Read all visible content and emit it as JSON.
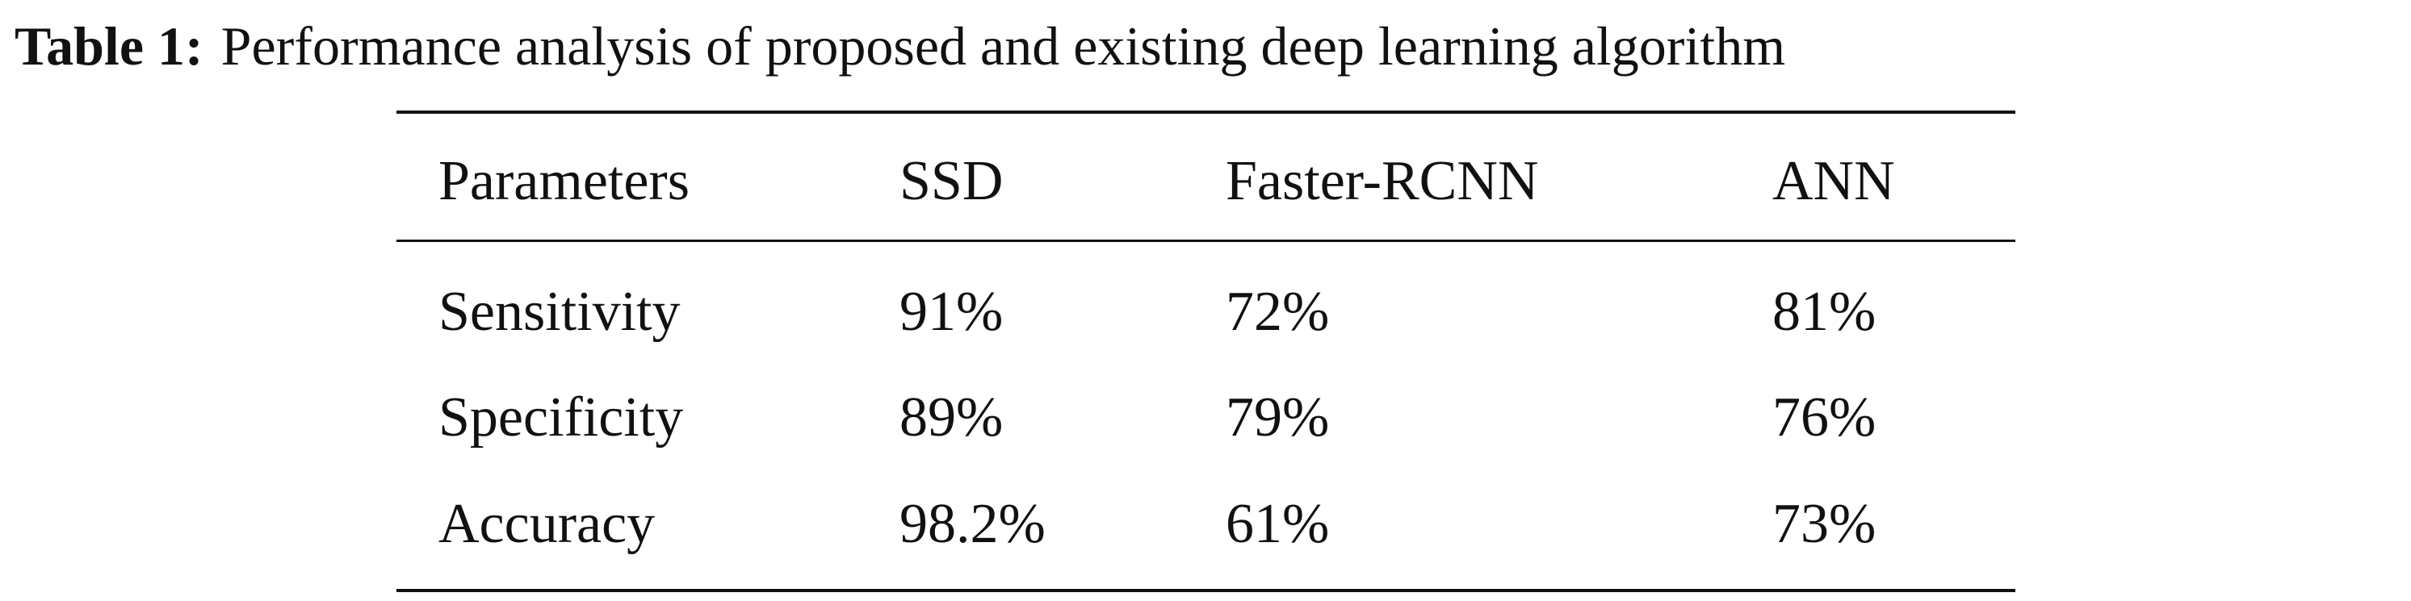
{
  "table": {
    "caption": {
      "label": "Table 1:",
      "text": "Performance analysis of proposed and existing deep learning algorithm"
    },
    "header": [
      "Parameters",
      "SSD",
      "Faster-RCNN",
      "ANN"
    ],
    "rows": [
      [
        "Sensitivity",
        "91%",
        "72%",
        "81%"
      ],
      [
        "Specificity",
        "89%",
        "79%",
        "76%"
      ],
      [
        "Accuracy",
        "98.2%",
        "61%",
        "73%"
      ]
    ]
  }
}
